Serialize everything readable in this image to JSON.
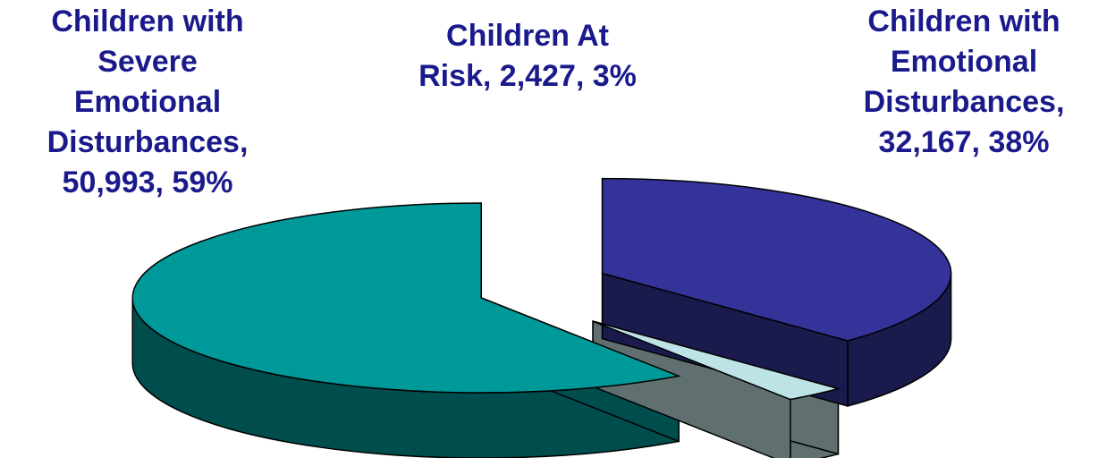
{
  "chart_data": {
    "type": "pie",
    "style": "3d-exploded",
    "categories": [
      "Children with Severe Emotional Disturbances",
      "Children At Risk",
      "Children with Emotional Disturbances"
    ],
    "values": [
      50993,
      2427,
      32167
    ],
    "percents": [
      59,
      3,
      38
    ],
    "value_labels": [
      "50,993",
      "2,427",
      "32,167"
    ],
    "percent_labels": [
      "59%",
      "3%",
      "38%"
    ],
    "colors": {
      "top": [
        "#009999",
        "#BDE3E6",
        "#333399"
      ],
      "side": [
        "#004D4D",
        "#607070",
        "#1A1A4D"
      ],
      "label_text": "#1A1A8C"
    },
    "data_labels": [
      [
        "Children with",
        "Severe",
        "Emotional",
        "Disturbances,",
        "50,993, 59%"
      ],
      [
        "Children At",
        "Risk, 2,427, 3%"
      ],
      [
        "Children with",
        "Emotional",
        "Disturbances,",
        "32,167, 38%"
      ]
    ]
  }
}
